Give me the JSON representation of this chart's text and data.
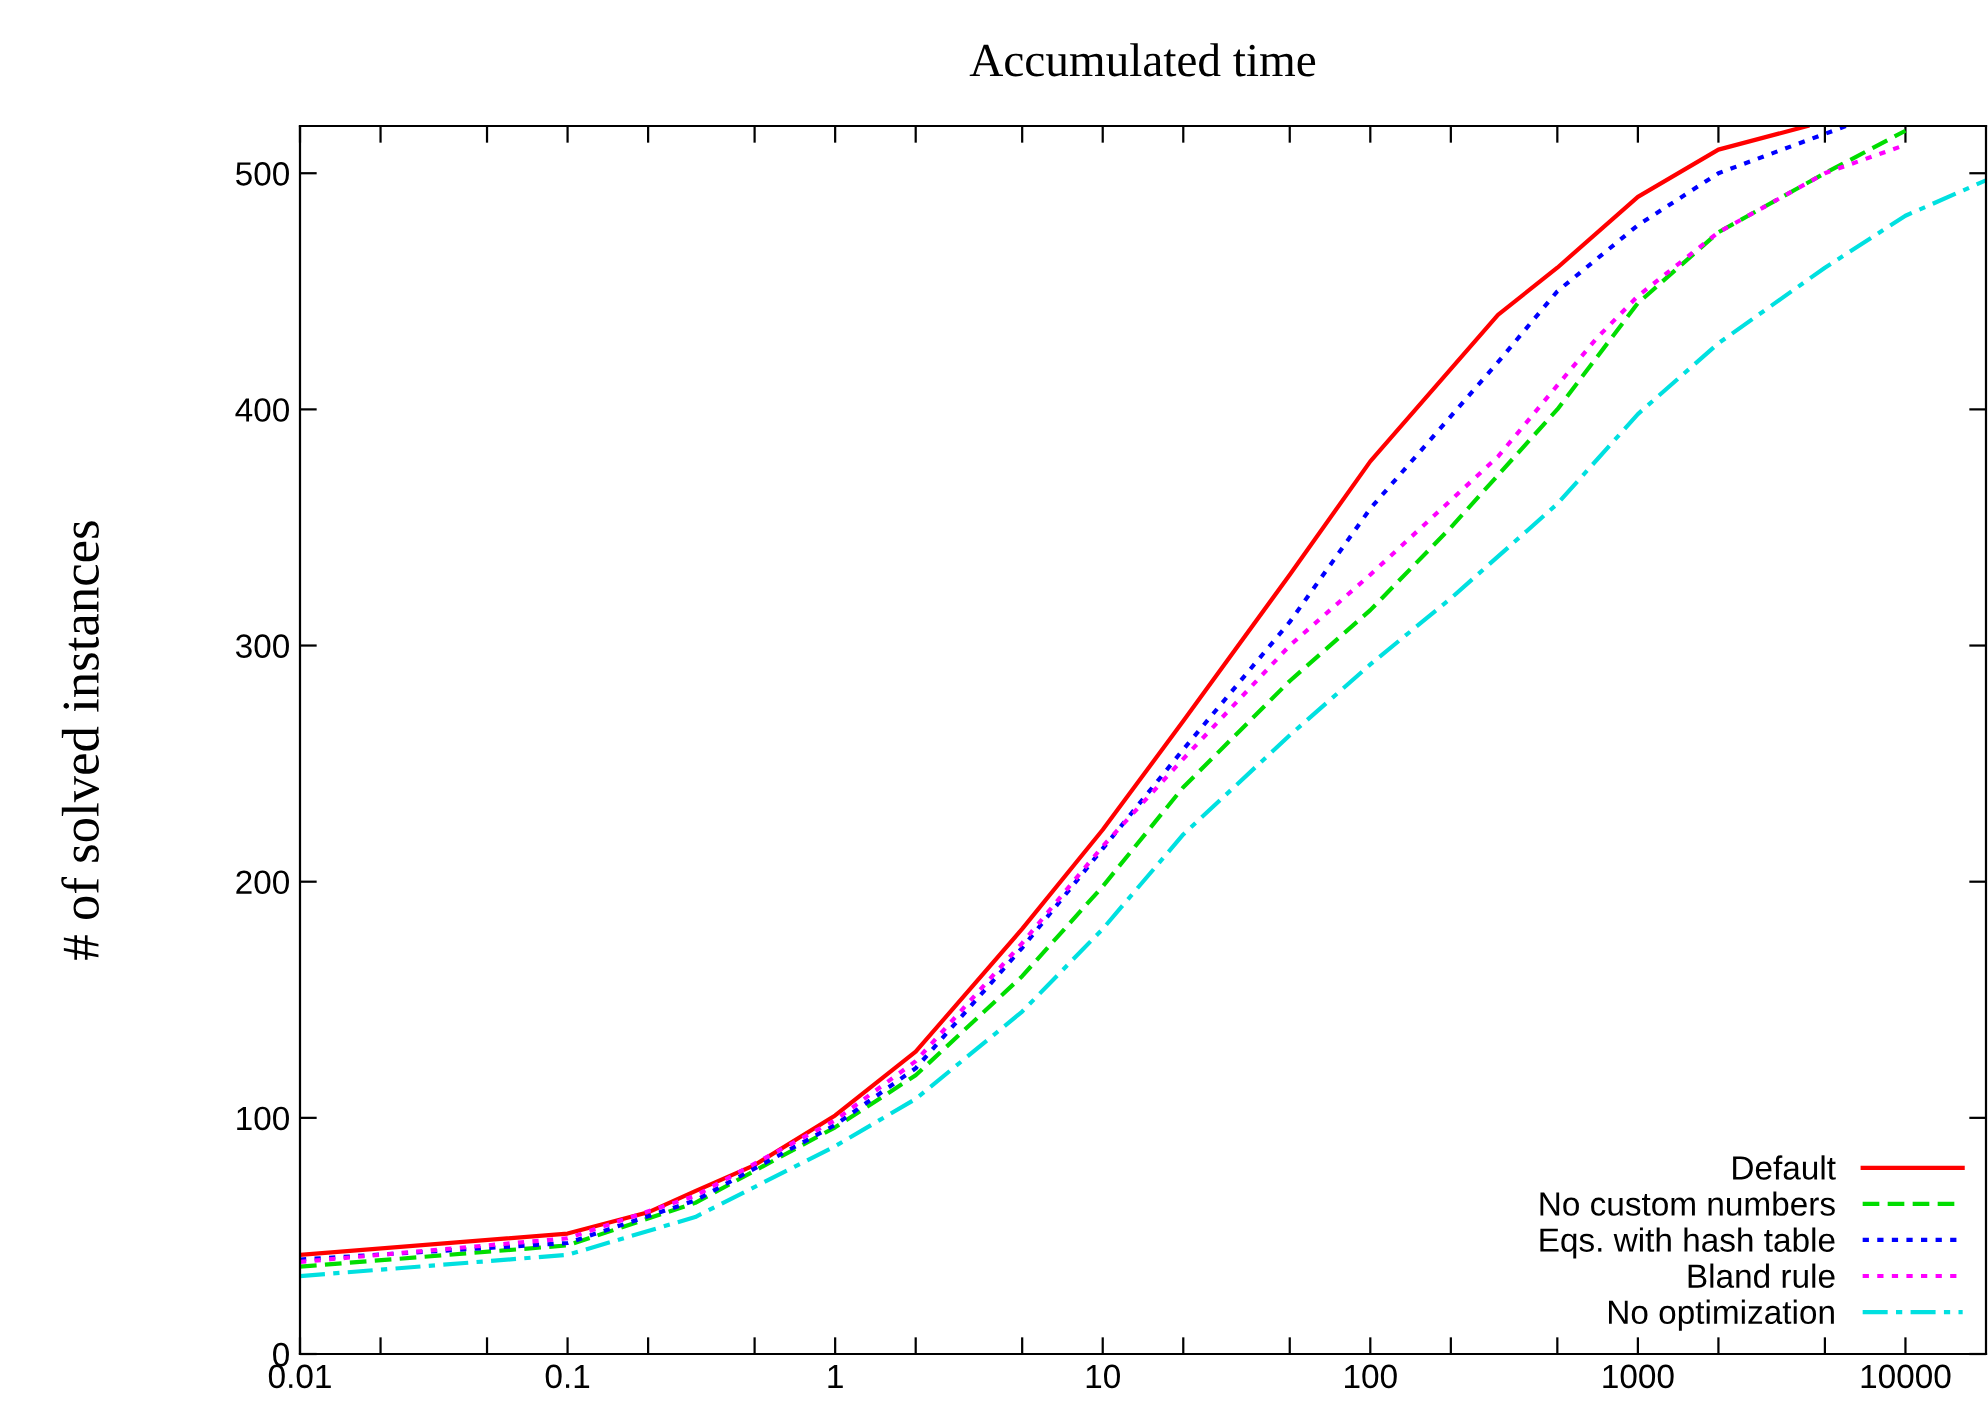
{
  "chart_data": {
    "type": "line",
    "title": "Accumulated time",
    "ylabel": "# of solved instances",
    "log": "x",
    "grid": false,
    "legend": "bottom right",
    "xlim": [
      0.01,
      20000
    ],
    "ylim": [
      0,
      520
    ],
    "xticks": [
      0.01,
      {
        "value": 0.02,
        "label": null
      },
      {
        "value": 0.05,
        "label": null
      },
      0.1,
      {
        "value": 0.2,
        "label": null
      },
      {
        "value": 0.5,
        "label": null
      },
      1,
      {
        "value": 2,
        "label": null
      },
      {
        "value": 5,
        "label": null
      },
      10,
      {
        "value": 20,
        "label": null
      },
      {
        "value": 50,
        "label": null
      },
      100,
      {
        "value": 200,
        "label": null
      },
      {
        "value": 500,
        "label": null
      },
      1000,
      {
        "value": 2000,
        "label": null
      },
      {
        "value": 5000,
        "label": null
      },
      10000
    ],
    "yticks": [
      0,
      100,
      200,
      300,
      400,
      500
    ],
    "series": [
      {
        "name": "Default",
        "color": "#ff0000",
        "line_style": "solid",
        "x": [
          0.01,
          0.1,
          0.2,
          0.3,
          0.5,
          1,
          2,
          5,
          10,
          20,
          50,
          100,
          300,
          500,
          1000,
          2000,
          4300
        ],
        "values": [
          42,
          51,
          60,
          69,
          80,
          101,
          128,
          180,
          222,
          268,
          330,
          378,
          440,
          460,
          490,
          510,
          520
        ]
      },
      {
        "name": "No custom numbers",
        "color": "#00dd00",
        "line_style": "dashed",
        "x": [
          0.01,
          0.1,
          0.3,
          1,
          2,
          5,
          10,
          20,
          50,
          100,
          200,
          500,
          1000,
          2000,
          5000,
          10000
        ],
        "values": [
          37,
          46,
          64,
          96,
          118,
          160,
          198,
          240,
          285,
          315,
          350,
          400,
          445,
          475,
          500,
          518
        ]
      },
      {
        "name": "Eqs. with hash table",
        "color": "#0000ff",
        "line_style": "dotted",
        "x": [
          0.01,
          0.1,
          0.3,
          1,
          2,
          5,
          10,
          20,
          50,
          100,
          300,
          500,
          1000,
          2000,
          6000
        ],
        "values": [
          40,
          47,
          65,
          97,
          121,
          172,
          214,
          256,
          310,
          358,
          420,
          450,
          478,
          500,
          520
        ]
      },
      {
        "name": "Bland rule",
        "color": "#ff00ff",
        "line_style": "dotted",
        "x": [
          0.01,
          0.1,
          0.3,
          1,
          2,
          5,
          10,
          20,
          50,
          100,
          300,
          700,
          1000,
          2000,
          5000,
          10000
        ],
        "values": [
          39,
          49,
          67,
          99,
          124,
          174,
          215,
          252,
          300,
          330,
          380,
          430,
          448,
          475,
          500,
          512
        ]
      },
      {
        "name": "No optimization",
        "color": "#00e0e0",
        "line_style": "dashdot",
        "x": [
          0.01,
          0.1,
          0.3,
          1,
          2,
          5,
          10,
          20,
          50,
          100,
          200,
          500,
          1000,
          2000,
          5000,
          10000,
          20000
        ],
        "values": [
          33,
          42,
          58,
          88,
          108,
          145,
          180,
          220,
          262,
          292,
          320,
          360,
          398,
          428,
          460,
          482,
          497
        ]
      }
    ]
  }
}
